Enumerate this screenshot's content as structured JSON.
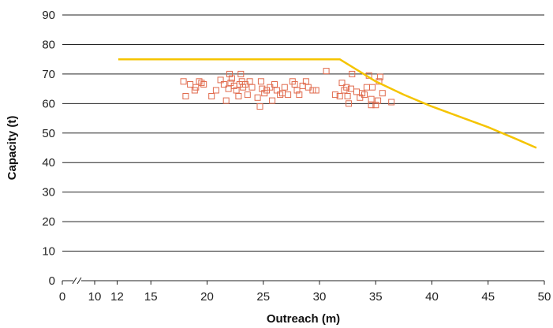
{
  "chart_data": {
    "type": "scatter",
    "xlabel": "Outreach (m)",
    "ylabel": "Capacity (t)",
    "ylim": [
      0,
      90
    ],
    "xlim": [
      0,
      50
    ],
    "x_axis_break": true,
    "x_ticks": [
      {
        "label": "0",
        "value": 0
      },
      {
        "label": "10",
        "value": 10
      },
      {
        "label": "12",
        "value": 12
      },
      {
        "label": "15",
        "value": 15
      },
      {
        "label": "20",
        "value": 20
      },
      {
        "label": "25",
        "value": 25
      },
      {
        "label": "30",
        "value": 30
      },
      {
        "label": "35",
        "value": 35
      },
      {
        "label": "40",
        "value": 40
      },
      {
        "label": "45",
        "value": 45
      },
      {
        "label": "50",
        "value": 50
      }
    ],
    "y_ticks": [
      "0",
      "10",
      "20",
      "30",
      "40",
      "50",
      "60",
      "70",
      "80",
      "90"
    ],
    "grid": "horizontal",
    "legend": "none",
    "series": [
      {
        "type": "line",
        "color": "#F5C400",
        "points": [
          [
            12.1,
            75
          ],
          [
            31.8,
            75
          ],
          [
            33.5,
            71
          ],
          [
            35,
            67.5
          ],
          [
            37.5,
            63
          ],
          [
            40,
            59
          ],
          [
            42.5,
            55.5
          ],
          [
            45,
            52
          ],
          [
            47.5,
            48
          ],
          [
            49.3,
            45
          ]
        ]
      },
      {
        "type": "scatter",
        "marker": "open-square",
        "color": "#E06A4C",
        "points": [
          [
            17.9,
            67.5
          ],
          [
            18.1,
            62.5
          ],
          [
            18.5,
            66.5
          ],
          [
            18.9,
            64.5
          ],
          [
            19.0,
            65.5
          ],
          [
            19.3,
            67.5
          ],
          [
            19.5,
            67
          ],
          [
            19.7,
            66.5
          ],
          [
            20.4,
            62.5
          ],
          [
            20.8,
            64.5
          ],
          [
            21.2,
            68
          ],
          [
            21.5,
            66.5
          ],
          [
            21.7,
            61
          ],
          [
            21.9,
            65
          ],
          [
            22.0,
            70
          ],
          [
            22.1,
            67
          ],
          [
            22.2,
            68.5
          ],
          [
            22.4,
            66
          ],
          [
            22.6,
            64.5
          ],
          [
            22.8,
            62.5
          ],
          [
            22.9,
            66.5
          ],
          [
            23.0,
            70
          ],
          [
            23.1,
            67.5
          ],
          [
            23.2,
            65.5
          ],
          [
            23.4,
            66.5
          ],
          [
            23.6,
            63
          ],
          [
            23.8,
            67.5
          ],
          [
            24.0,
            65.5
          ],
          [
            24.5,
            62
          ],
          [
            24.7,
            59
          ],
          [
            24.8,
            67.5
          ],
          [
            24.9,
            65
          ],
          [
            25.1,
            63.5
          ],
          [
            25.3,
            64.5
          ],
          [
            25.6,
            65.5
          ],
          [
            25.8,
            61
          ],
          [
            26.0,
            66.5
          ],
          [
            26.2,
            64.5
          ],
          [
            26.5,
            63
          ],
          [
            26.7,
            63.5
          ],
          [
            26.9,
            65.5
          ],
          [
            27.2,
            63
          ],
          [
            27.6,
            67.5
          ],
          [
            27.8,
            66.5
          ],
          [
            28.0,
            64.5
          ],
          [
            28.2,
            63
          ],
          [
            28.5,
            66
          ],
          [
            28.8,
            67.5
          ],
          [
            29.0,
            65.5
          ],
          [
            29.4,
            64.5
          ],
          [
            29.7,
            64.5
          ],
          [
            30.6,
            71
          ],
          [
            31.4,
            63
          ],
          [
            31.8,
            62.5
          ],
          [
            32.0,
            67
          ],
          [
            32.2,
            64.5
          ],
          [
            32.4,
            65.5
          ],
          [
            32.5,
            62.5
          ],
          [
            32.6,
            60
          ],
          [
            32.8,
            65
          ],
          [
            32.9,
            70
          ],
          [
            33.3,
            64
          ],
          [
            33.6,
            62
          ],
          [
            33.8,
            63.5
          ],
          [
            34.0,
            63
          ],
          [
            34.2,
            65.5
          ],
          [
            34.4,
            69.5
          ],
          [
            34.6,
            61.5
          ],
          [
            34.6,
            59.5
          ],
          [
            34.7,
            65.5
          ],
          [
            35.0,
            59.5
          ],
          [
            35.2,
            61
          ],
          [
            35.3,
            67.5
          ],
          [
            35.4,
            69
          ],
          [
            35.6,
            63.5
          ],
          [
            36.4,
            60.5
          ]
        ]
      }
    ]
  }
}
